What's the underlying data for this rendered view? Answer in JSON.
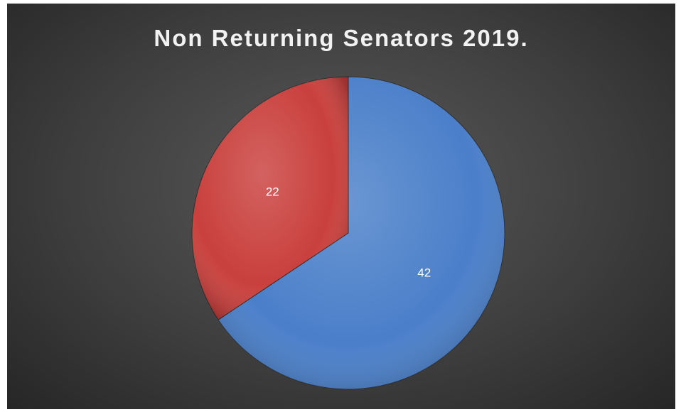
{
  "chart_data": {
    "type": "pie",
    "title": "Non Returning Senators 2019.",
    "slices": [
      {
        "value": 42,
        "label": "42",
        "color": "#4a7fc9"
      },
      {
        "value": 22,
        "label": "22",
        "color": "#c9403d"
      }
    ],
    "start_angle_deg": 0,
    "direction": "clockwise",
    "legend": "none"
  }
}
